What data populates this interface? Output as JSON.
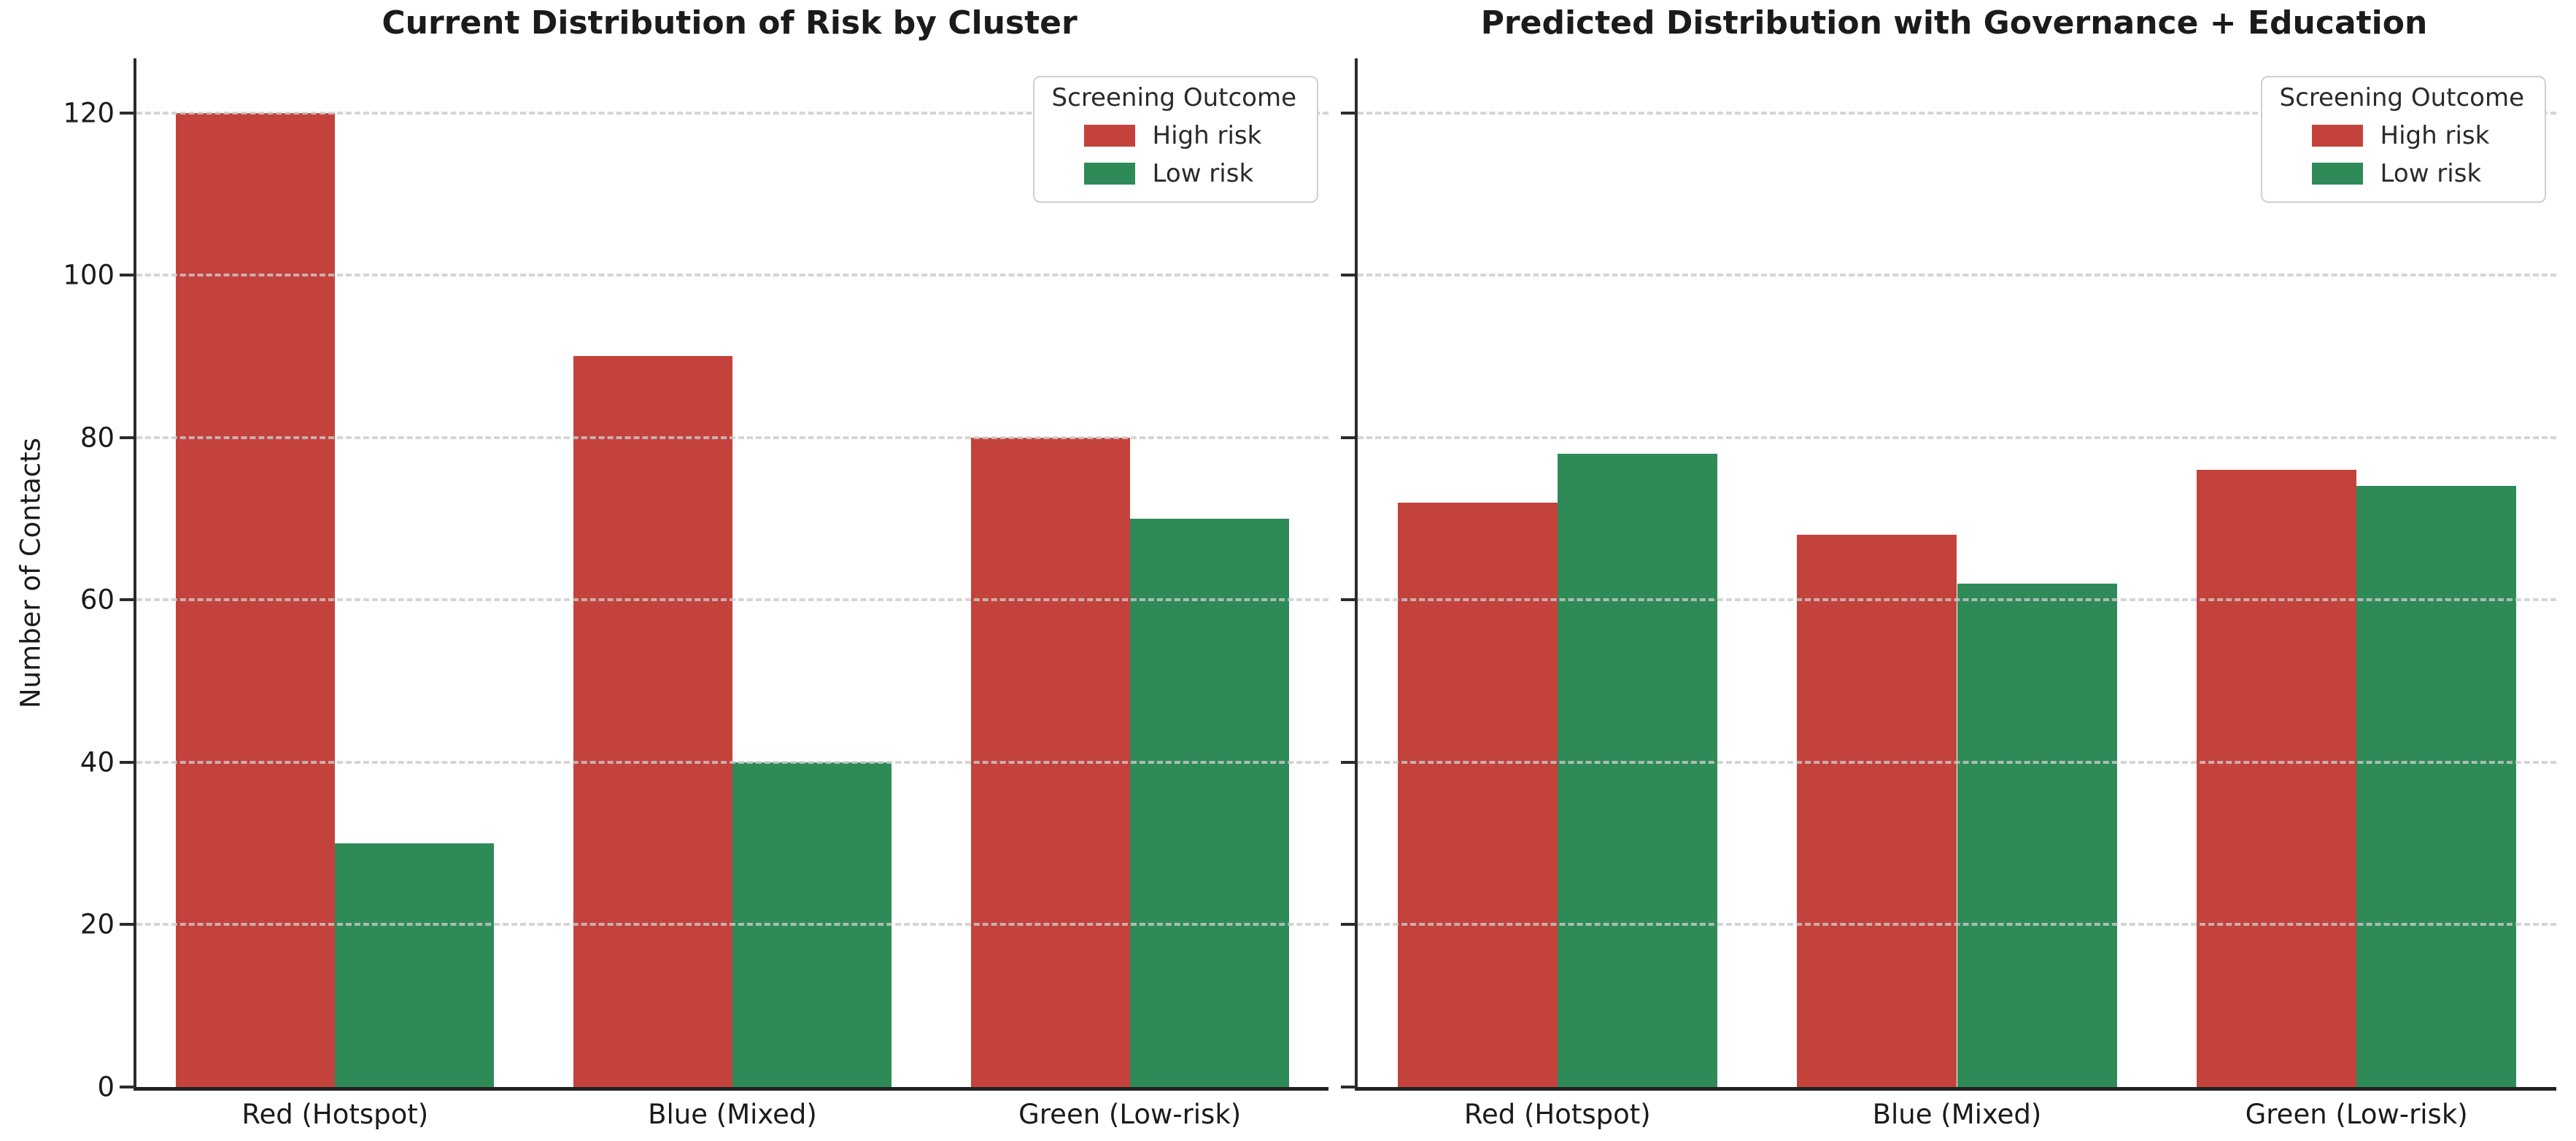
{
  "chart_data": [
    {
      "type": "bar",
      "title": "Current Distribution of Risk by Cluster",
      "xlabel": "",
      "ylabel": "Number of Contacts",
      "categories": [
        "Red (Hotspot)",
        "Blue (Mixed)",
        "Green (Low-risk)"
      ],
      "series": [
        {
          "name": "High risk",
          "color": "#c4423c",
          "values": [
            120,
            90,
            80
          ]
        },
        {
          "name": "Low risk",
          "color": "#2e8b57",
          "values": [
            30,
            40,
            70
          ]
        }
      ],
      "yticks": [
        0,
        20,
        40,
        60,
        80,
        100,
        120
      ],
      "ylim": [
        0,
        126.7
      ],
      "grid": "horizontal-dotted",
      "legend": {
        "title": "Screening Outcome",
        "position": "upper right"
      },
      "show_ytick_labels": true
    },
    {
      "type": "bar",
      "title": "Predicted Distribution with Governance + Education",
      "xlabel": "",
      "ylabel": "",
      "categories": [
        "Red (Hotspot)",
        "Blue (Mixed)",
        "Green (Low-risk)"
      ],
      "series": [
        {
          "name": "High risk",
          "color": "#c4423c",
          "values": [
            72,
            68,
            76
          ]
        },
        {
          "name": "Low risk",
          "color": "#2e8b57",
          "values": [
            78,
            62,
            74
          ]
        }
      ],
      "yticks": [
        0,
        20,
        40,
        60,
        80,
        100,
        120
      ],
      "ylim": [
        0,
        126.7
      ],
      "grid": "horizontal-dotted",
      "legend": {
        "title": "Screening Outcome",
        "position": "upper right"
      },
      "show_ytick_labels": false
    }
  ]
}
